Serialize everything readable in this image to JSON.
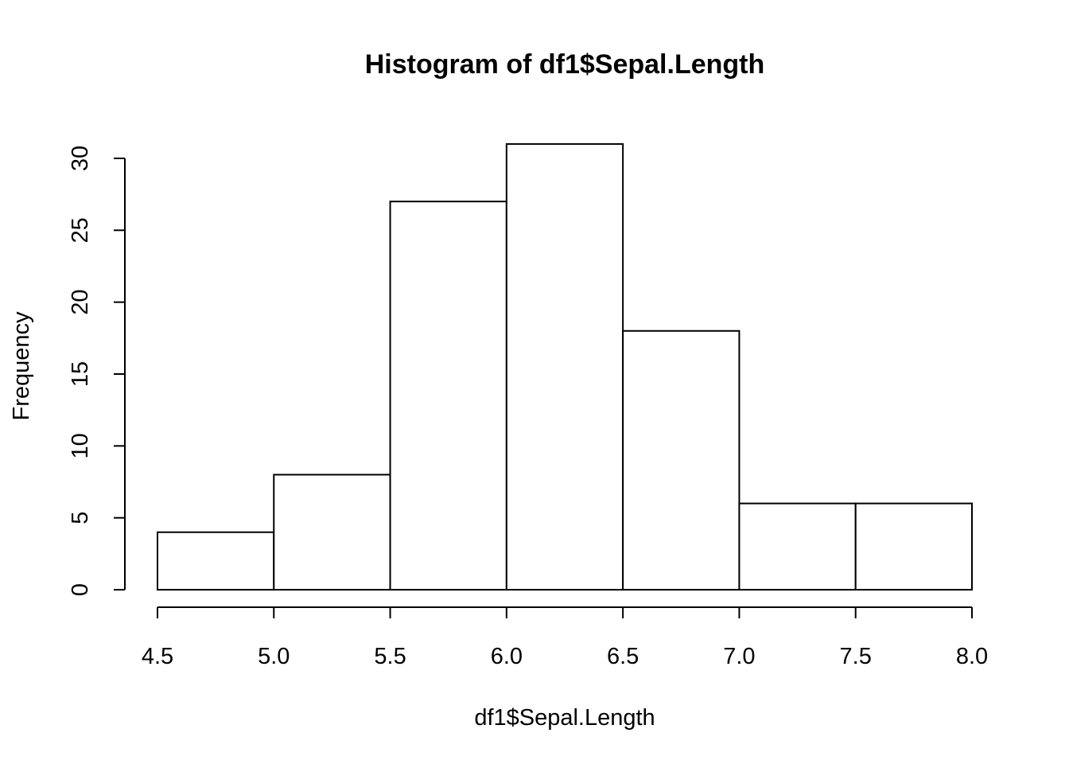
{
  "chart_data": {
    "type": "bar",
    "title": "Histogram of df1$Sepal.Length",
    "xlabel": "df1$Sepal.Length",
    "ylabel": "Frequency",
    "bins": [
      {
        "from": 4.5,
        "to": 5.0,
        "value": 4
      },
      {
        "from": 5.0,
        "to": 5.5,
        "value": 8
      },
      {
        "from": 5.5,
        "to": 6.0,
        "value": 27
      },
      {
        "from": 6.0,
        "to": 6.5,
        "value": 31
      },
      {
        "from": 6.5,
        "to": 7.0,
        "value": 18
      },
      {
        "from": 7.0,
        "to": 7.5,
        "value": 6
      },
      {
        "from": 7.5,
        "to": 8.0,
        "value": 6
      }
    ],
    "xlim": [
      4.5,
      8.0
    ],
    "ylim": [
      0,
      30
    ],
    "x_ticks": [
      "4.5",
      "5.0",
      "5.5",
      "6.0",
      "6.5",
      "7.0",
      "7.5",
      "8.0"
    ],
    "y_ticks": [
      "0",
      "5",
      "10",
      "15",
      "20",
      "25",
      "30"
    ],
    "grid": false,
    "colors": {
      "bar_fill": "#ffffff",
      "bar_stroke": "#000000"
    }
  }
}
